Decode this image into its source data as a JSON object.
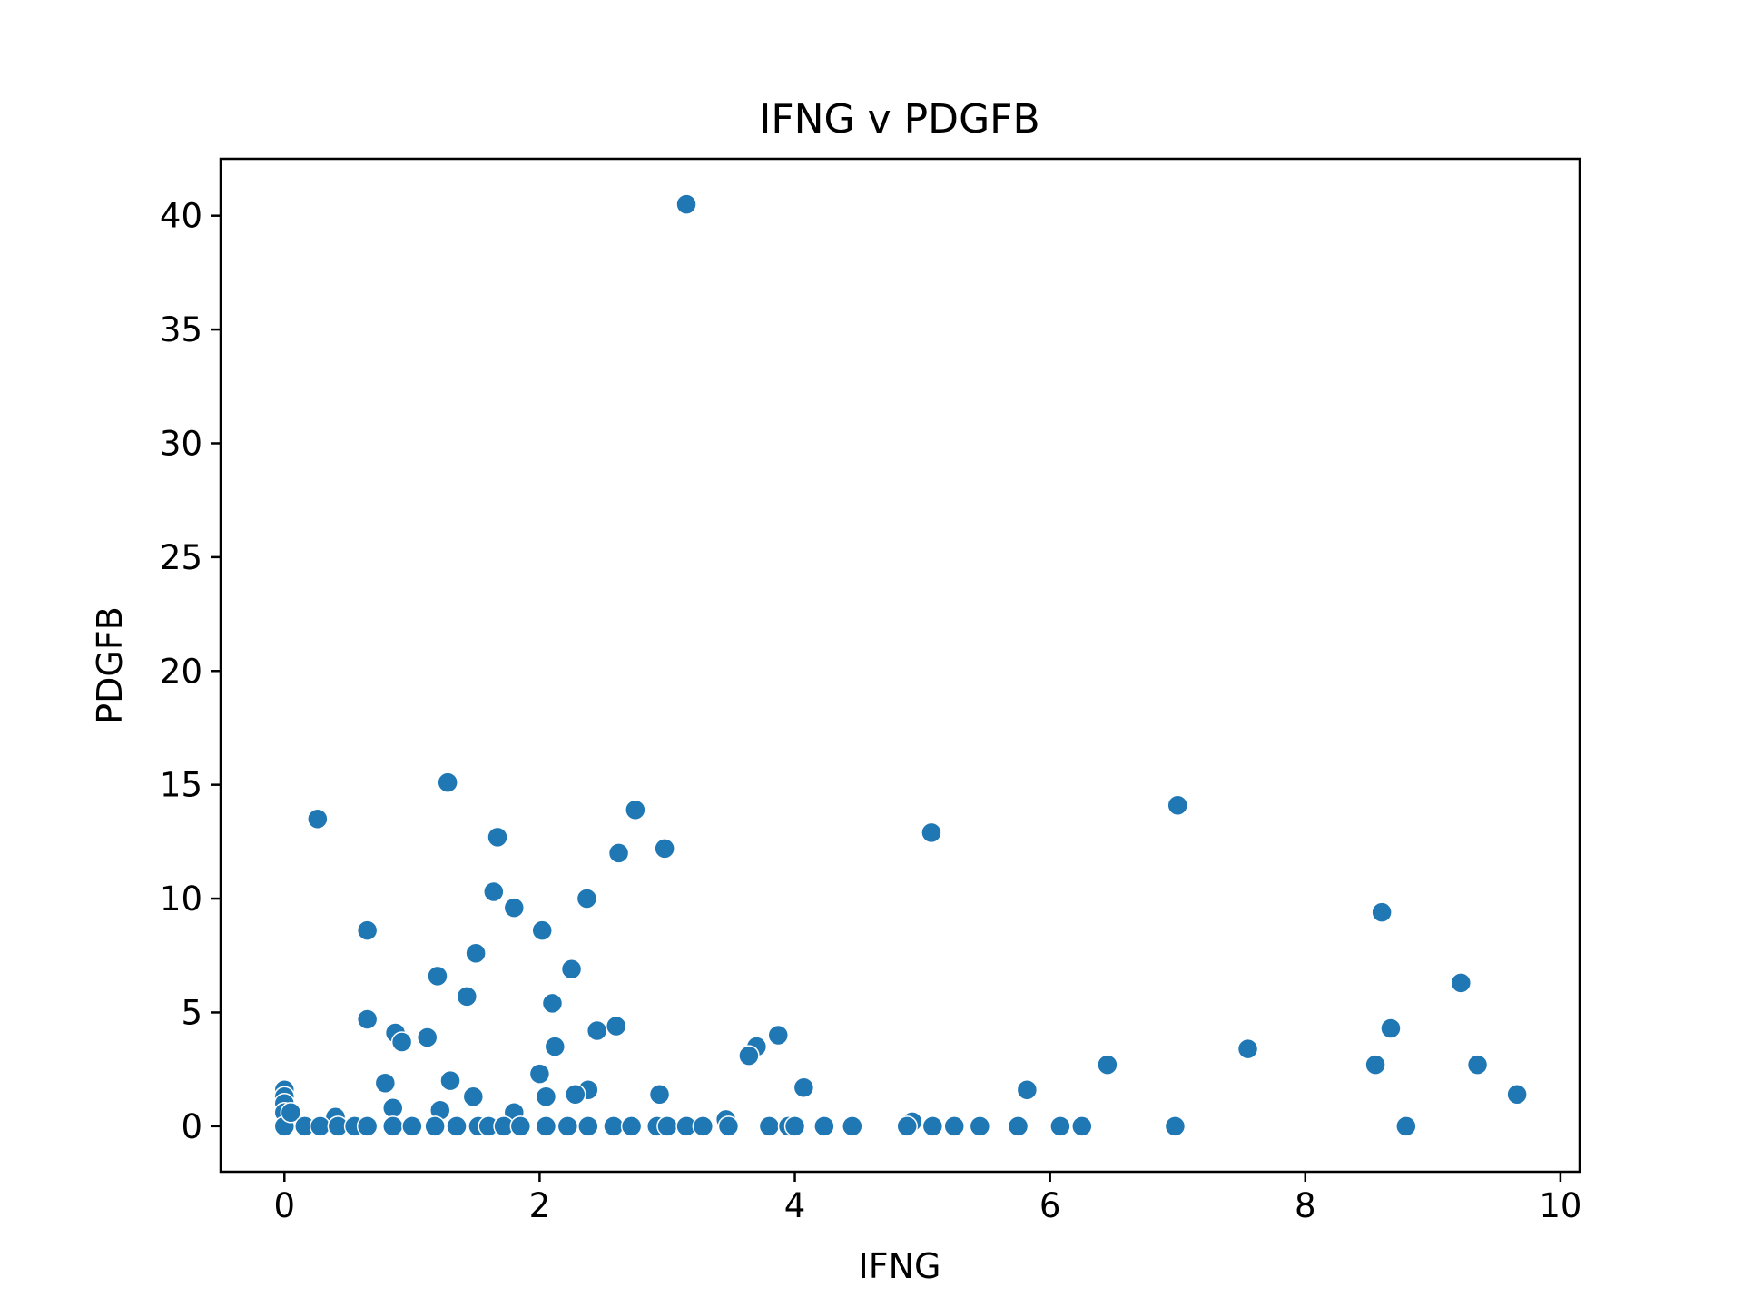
{
  "chart_data": {
    "type": "scatter",
    "title": "IFNG v PDGFB",
    "xlabel": "IFNG",
    "ylabel": "PDGFB",
    "xlim": [
      -0.5,
      10.15
    ],
    "ylim": [
      -2.0,
      42.5
    ],
    "xticks": [
      0,
      2,
      4,
      6,
      8,
      10
    ],
    "yticks": [
      0,
      5,
      10,
      15,
      20,
      25,
      30,
      35,
      40
    ],
    "grid": false,
    "legend": "none",
    "marker_color": "#1f77b4",
    "series": [
      {
        "x": [
          3.15,
          1.28,
          0.26,
          7.0,
          2.75,
          5.07,
          1.67,
          2.98,
          2.62,
          0.65,
          1.64,
          1.8,
          2.02,
          2.37,
          8.6,
          1.5,
          2.25,
          1.2,
          9.22,
          1.43,
          2.1,
          2.45,
          2.6,
          0.65,
          8.67,
          3.87,
          0.87,
          1.12,
          0.92,
          2.12,
          3.7,
          3.64,
          7.55,
          6.45,
          9.35,
          8.55,
          2.0,
          1.3,
          0.79,
          4.07,
          2.38,
          5.82,
          2.94,
          2.28,
          1.48,
          9.66,
          2.05,
          0.85,
          1.22,
          0.0,
          0.0,
          0.0,
          0.0,
          0.0,
          0.05,
          0.4,
          1.8,
          3.46,
          4.92,
          0.16,
          0.28,
          0.42,
          0.55,
          0.65,
          0.85,
          1.0,
          1.18,
          1.35,
          1.52,
          1.6,
          1.72,
          1.85,
          2.05,
          2.22,
          2.38,
          2.58,
          2.72,
          2.92,
          3.0,
          3.15,
          3.28,
          3.48,
          3.8,
          3.95,
          4.0,
          4.23,
          4.45,
          4.88,
          5.08,
          5.25,
          5.45,
          5.75,
          6.08,
          6.25,
          6.98,
          8.79
        ],
        "y": [
          40.5,
          15.1,
          13.5,
          14.1,
          13.9,
          12.9,
          12.7,
          12.2,
          12.0,
          8.6,
          10.3,
          9.6,
          8.6,
          10.0,
          9.4,
          7.6,
          6.9,
          6.6,
          6.3,
          5.7,
          5.4,
          4.2,
          4.4,
          4.7,
          4.3,
          4.0,
          4.1,
          3.9,
          3.7,
          3.5,
          3.5,
          3.1,
          3.4,
          2.7,
          2.7,
          2.7,
          2.3,
          2.0,
          1.9,
          1.7,
          1.6,
          1.6,
          1.4,
          1.4,
          1.3,
          1.4,
          1.3,
          0.8,
          0.7,
          1.6,
          1.3,
          1.0,
          0.6,
          0.0,
          0.6,
          0.4,
          0.6,
          0.3,
          0.2,
          0.0,
          0.0,
          0.0,
          0.0,
          0.0,
          0.0,
          0.0,
          0.0,
          0.0,
          0.0,
          0.0,
          0.0,
          0.0,
          0.0,
          0.0,
          0.0,
          0.0,
          0.0,
          0.0,
          0.0,
          0.0,
          0.0,
          0.0,
          0.0,
          0.0,
          0.0,
          0.0,
          0.0,
          0.0,
          0.0,
          0.0,
          0.0,
          0.0,
          0.0,
          0.0,
          0.0,
          0.0
        ]
      }
    ]
  }
}
